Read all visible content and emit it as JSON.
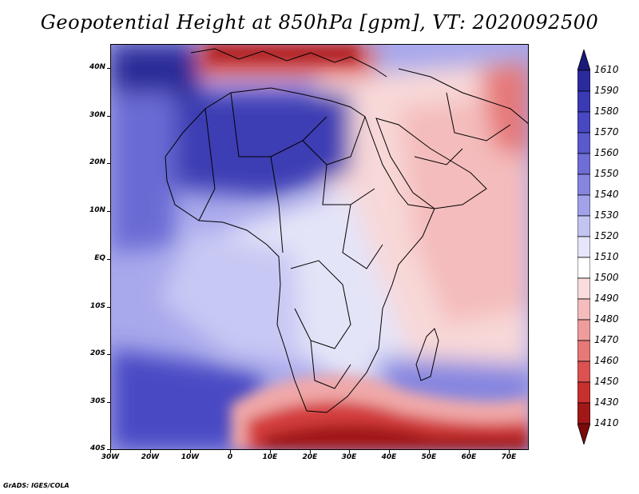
{
  "title": "Geopotential Height at 850hPa [gpm], VT: 2020092500",
  "credit": "GrADS: IGES/COLA",
  "map": {
    "lon_range": [
      -30,
      75
    ],
    "lat_range": [
      -40,
      45
    ],
    "lat_labels": [
      "40N",
      "30N",
      "20N",
      "10N",
      "EQ",
      "10S",
      "20S",
      "30S",
      "40S"
    ],
    "lon_labels": [
      "30W",
      "20W",
      "10W",
      "0",
      "10E",
      "20E",
      "30E",
      "40E",
      "50E",
      "60E",
      "70E"
    ]
  },
  "colorbar": {
    "levels": [
      "1610",
      "1590",
      "1580",
      "1570",
      "1560",
      "1550",
      "1540",
      "1530",
      "1520",
      "1510",
      "1500",
      "1490",
      "1480",
      "1470",
      "1460",
      "1450",
      "1430",
      "1410"
    ],
    "colors": [
      "#1a1a7a",
      "#2b2b9e",
      "#3a3ab4",
      "#4848c2",
      "#5a5acc",
      "#6e6ed6",
      "#8686e0",
      "#a2a2ea",
      "#c4c4f2",
      "#e6e6fa",
      "#ffffff",
      "#fadcdc",
      "#f4bcbc",
      "#ee9c9c",
      "#e67878",
      "#dc5252",
      "#c83030",
      "#a01818",
      "#7a0a0a"
    ]
  }
}
